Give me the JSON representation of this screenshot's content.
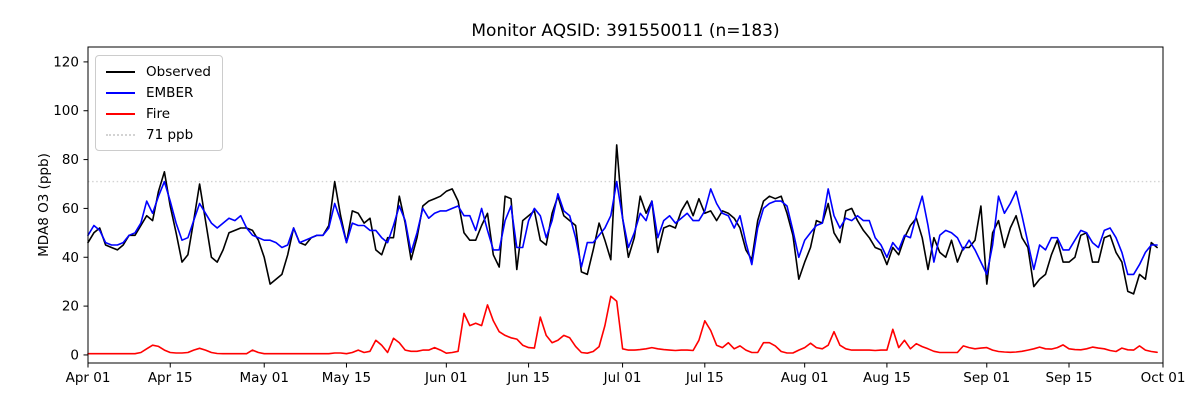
{
  "figure": {
    "title": "Monitor AQSID: 391550011 (n=183)",
    "ylabel": "MDA8 O3 (ppb)"
  },
  "legend": {
    "items": [
      {
        "label": "Observed",
        "color": "#000000",
        "style": "solid"
      },
      {
        "label": "EMBER",
        "color": "#0000ff",
        "style": "solid"
      },
      {
        "label": "Fire",
        "color": "#ff0000",
        "style": "solid"
      },
      {
        "label": "71 ppb",
        "color": "#d3d3d3",
        "style": "dotted"
      }
    ]
  },
  "chart_data": {
    "type": "line",
    "title": "Monitor AQSID: 391550011 (n=183)",
    "xlabel": "",
    "ylabel": "MDA8 O3 (ppb)",
    "n_days": 183,
    "x_range": [
      "Apr 01",
      "Oct 01"
    ],
    "ylim": [
      -3.3,
      126.1
    ],
    "yticks": [
      0,
      20,
      40,
      60,
      80,
      100,
      120
    ],
    "xticks": [
      {
        "day": 0,
        "label": "Apr 01"
      },
      {
        "day": 14,
        "label": "Apr 15"
      },
      {
        "day": 30,
        "label": "May 01"
      },
      {
        "day": 44,
        "label": "May 15"
      },
      {
        "day": 61,
        "label": "Jun 01"
      },
      {
        "day": 75,
        "label": "Jun 15"
      },
      {
        "day": 91,
        "label": "Jul 01"
      },
      {
        "day": 105,
        "label": "Jul 15"
      },
      {
        "day": 122,
        "label": "Aug 01"
      },
      {
        "day": 136,
        "label": "Aug 15"
      },
      {
        "day": 153,
        "label": "Sep 01"
      },
      {
        "day": 167,
        "label": "Sep 15"
      },
      {
        "day": 183,
        "label": "Oct 01"
      }
    ],
    "threshold": {
      "value": 71,
      "label": "71 ppb",
      "color": "#d3d3d3",
      "line_style": "dotted"
    },
    "grid": false,
    "legend_position": "upper left",
    "series": [
      {
        "name": "Observed",
        "color": "#000000",
        "values": [
          46,
          50,
          52,
          45,
          44,
          43,
          45,
          49,
          49,
          53,
          57,
          55,
          67,
          75,
          61,
          50,
          38,
          41,
          55,
          70,
          55,
          40,
          38,
          43,
          50,
          51,
          52,
          52,
          51,
          47,
          40,
          29,
          31,
          33,
          41,
          52,
          46,
          45,
          48,
          49,
          49,
          53,
          71,
          57,
          46,
          59,
          58,
          54,
          56,
          43,
          41,
          48,
          48,
          65,
          54,
          39,
          48,
          61,
          63,
          64,
          65,
          67,
          68,
          63,
          50,
          47,
          47,
          53,
          58,
          41,
          36,
          65,
          64,
          35,
          55,
          57,
          59,
          47,
          45,
          58,
          65,
          57,
          55,
          53,
          34,
          33,
          43,
          54,
          47,
          39,
          86,
          56,
          40,
          48,
          65,
          58,
          63,
          42,
          52,
          53,
          52,
          59,
          63,
          57,
          64,
          58,
          59,
          55,
          59,
          58,
          56,
          52,
          43,
          39,
          55,
          63,
          65,
          64,
          65,
          58,
          49,
          31,
          38,
          44,
          55,
          54,
          62,
          50,
          46,
          59,
          60,
          55,
          51,
          48,
          44,
          43,
          37,
          44,
          41,
          48,
          53,
          56,
          48,
          35,
          48,
          42,
          40,
          47,
          38,
          44,
          44,
          47,
          61,
          29,
          50,
          55,
          44,
          52,
          57,
          48,
          44,
          28,
          31,
          33,
          41,
          47,
          38,
          38,
          40,
          49,
          50,
          38,
          38,
          48,
          49,
          42,
          38,
          26,
          25,
          33,
          31,
          46,
          44
        ]
      },
      {
        "name": "EMBER",
        "color": "#0000ff",
        "values": [
          49,
          53,
          51,
          46,
          45,
          45,
          46,
          49,
          50,
          54,
          63,
          58,
          65,
          71,
          63,
          54,
          47,
          48,
          55,
          62,
          58,
          54,
          52,
          54,
          56,
          55,
          57,
          52,
          49,
          48,
          47,
          47,
          46,
          44,
          45,
          52,
          46,
          47,
          48,
          49,
          49,
          52,
          62,
          55,
          46,
          54,
          53,
          53,
          51,
          51,
          48,
          46,
          53,
          61,
          55,
          42,
          50,
          60,
          56,
          58,
          59,
          59,
          60,
          61,
          57,
          57,
          51,
          60,
          51,
          43,
          43,
          55,
          61,
          44,
          44,
          55,
          60,
          57,
          48,
          55,
          66,
          59,
          57,
          48,
          36,
          46,
          46,
          49,
          52,
          57,
          71,
          56,
          44,
          50,
          58,
          55,
          63,
          48,
          55,
          57,
          54,
          56,
          58,
          55,
          55,
          59,
          68,
          62,
          58,
          57,
          52,
          57,
          46,
          37,
          52,
          60,
          62,
          63,
          63,
          61,
          51,
          40,
          47,
          50,
          53,
          54,
          68,
          57,
          52,
          56,
          55,
          57,
          55,
          55,
          48,
          45,
          40,
          46,
          43,
          49,
          48,
          57,
          65,
          53,
          38,
          49,
          51,
          50,
          48,
          43,
          47,
          43,
          38,
          33,
          45,
          65,
          58,
          62,
          67,
          57,
          46,
          35,
          45,
          43,
          48,
          48,
          43,
          43,
          47,
          51,
          50,
          46,
          44,
          51,
          52,
          48,
          42,
          33,
          33,
          37,
          42,
          45,
          45
        ]
      },
      {
        "name": "Fire",
        "color": "#ff0000",
        "values": [
          0.5,
          0.5,
          0.5,
          0.5,
          0.5,
          0.5,
          0.5,
          0.5,
          0.5,
          1,
          2.5,
          4,
          3.5,
          2,
          1,
          0.8,
          0.8,
          1,
          2,
          2.7,
          2,
          1,
          0.6,
          0.5,
          0.5,
          0.5,
          0.5,
          0.5,
          2,
          1,
          0.5,
          0.5,
          0.5,
          0.5,
          0.5,
          0.5,
          0.5,
          0.5,
          0.5,
          0.5,
          0.5,
          0.5,
          0.8,
          0.8,
          0.5,
          1,
          2,
          1,
          1.5,
          6,
          4,
          1,
          6.8,
          5,
          2,
          1.5,
          1.5,
          2,
          2,
          3,
          2,
          0.7,
          1,
          1.5,
          17,
          12,
          13,
          12,
          20.5,
          14,
          9.5,
          8,
          7,
          6.5,
          4,
          3,
          2.8,
          15.5,
          8,
          5,
          6,
          8,
          7,
          3.5,
          1,
          0.7,
          1.4,
          3.4,
          12,
          24,
          22,
          2.5,
          2,
          2,
          2.2,
          2.5,
          3,
          2.5,
          2.2,
          2,
          1.8,
          2,
          2,
          1.8,
          6,
          14,
          10,
          4,
          3,
          5,
          2.5,
          3.7,
          2,
          1,
          1,
          5,
          5,
          3.7,
          1.4,
          0.8,
          0.8,
          2,
          3,
          4.8,
          3,
          2.5,
          4,
          9.5,
          4,
          2.5,
          2,
          2,
          2,
          2,
          1.8,
          2,
          2,
          10.5,
          3,
          6,
          2.5,
          4.6,
          3.4,
          2.5,
          1.5,
          1,
          1,
          1,
          1,
          3.7,
          3,
          2.5,
          2.8,
          3,
          2,
          1.4,
          1.2,
          1.1,
          1.2,
          1.5,
          2,
          2.5,
          3.2,
          2.5,
          2.4,
          3,
          4.1,
          2.5,
          2.2,
          2.1,
          2.5,
          3.2,
          2.8,
          2.5,
          1.8,
          1.4,
          2.8,
          2.1,
          2,
          3.7,
          2,
          1.4,
          1.1
        ]
      }
    ]
  }
}
